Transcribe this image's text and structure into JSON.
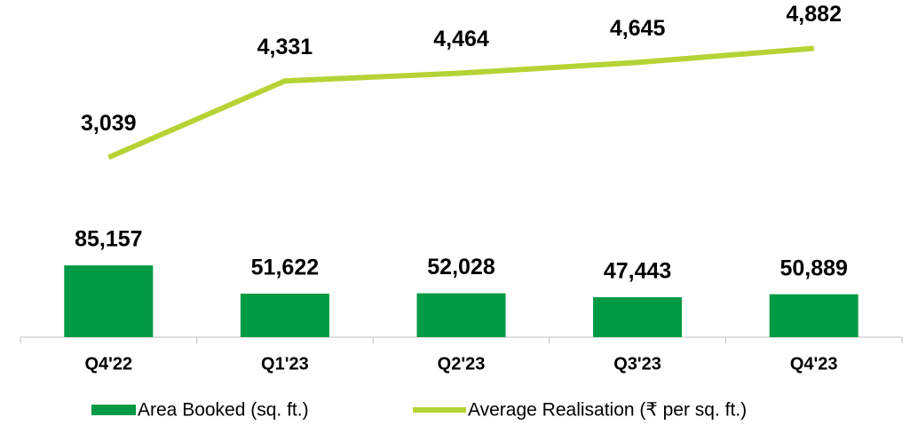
{
  "chart_data": {
    "type": "bar_line",
    "categories": [
      "Q4'22",
      "Q1'23",
      "Q2'23",
      "Q3'23",
      "Q4'23"
    ],
    "series": [
      {
        "name": "Area Booked (sq. ft.)",
        "type": "bar",
        "color": "#009a44",
        "axis": "y",
        "values": [
          85157,
          51622,
          52028,
          47443,
          50889
        ],
        "value_labels": [
          "85,157",
          "51,622",
          "52,028",
          "47,443",
          "50,889"
        ]
      },
      {
        "name": "Average Realisation (₹ per sq. ft.)",
        "type": "line",
        "color": "#b5d334",
        "axis": "y2",
        "values": [
          3039,
          4331,
          4464,
          4645,
          4882
        ],
        "value_labels": [
          "3,039",
          "4,331",
          "4,464",
          "4,645",
          "4,882"
        ]
      }
    ],
    "ylim": [
      0,
      400000
    ],
    "y2lim": [
      0,
      5700
    ]
  }
}
